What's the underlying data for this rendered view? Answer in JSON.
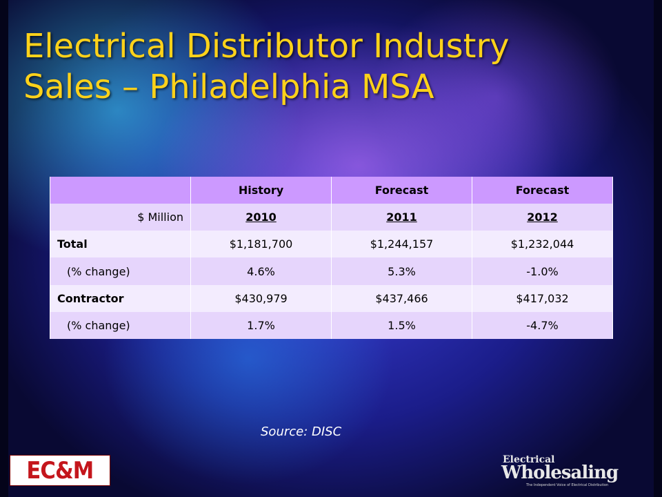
{
  "title": {
    "line1": "Electrical Distributor Industry",
    "line2": "Sales – Philadelphia MSA"
  },
  "table": {
    "header": [
      "",
      "History",
      "Forecast",
      "Forecast"
    ],
    "year_row": {
      "label": "$ Million",
      "years": [
        "2010",
        "2011",
        "2012"
      ]
    },
    "rows": [
      {
        "label": "Total",
        "bold": true,
        "values": [
          "$1,181,700",
          "$1,244,157",
          "$1,232,044"
        ]
      },
      {
        "label": "(% change)",
        "bold": false,
        "values": [
          "4.6%",
          "5.3%",
          "-1.0%"
        ]
      },
      {
        "label": "Contractor",
        "bold": true,
        "values": [
          "$430,979",
          "$437,466",
          "$417,032"
        ]
      },
      {
        "label": "(% change)",
        "bold": false,
        "values": [
          "1.7%",
          "1.5%",
          "-4.7%"
        ]
      }
    ]
  },
  "source": "Source: DISC",
  "logos": {
    "ecm": "EC&M",
    "ew_line1": "Electrical",
    "ew_line2": "Wholesaling",
    "ew_line3": "The Independent Voice of Electrical Distribution"
  },
  "colors": {
    "title": "#ffd21a",
    "table_header": "#cc99ff",
    "table_row_dark": "#e6d5fc",
    "table_row_light": "#f3ecfe",
    "ecm_red": "#c4161c"
  }
}
